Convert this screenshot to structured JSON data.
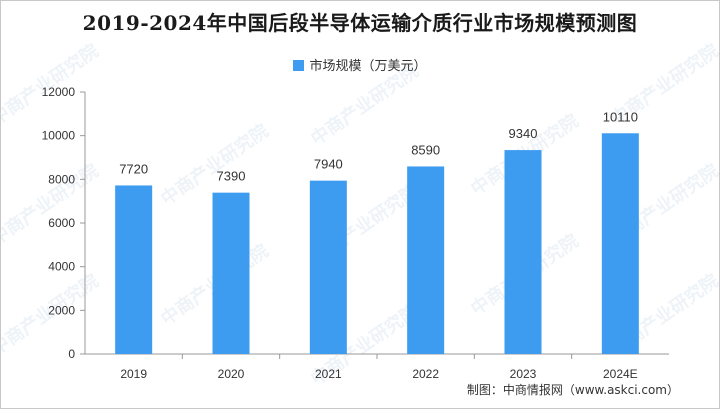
{
  "chart_data": {
    "type": "bar",
    "title": "2019-2024年中国后段半导体运输介质行业市场规模预测图",
    "categories": [
      "2019",
      "2020",
      "2021",
      "2022",
      "2023",
      "2024E"
    ],
    "series": [
      {
        "name": "市场规模（万美元）",
        "values": [
          7720,
          7390,
          7940,
          8590,
          9340,
          10110
        ],
        "color": "#3d9cf0"
      }
    ],
    "data_labels": [
      "7720",
      "7390",
      "7940",
      "8590",
      "9340",
      "10110"
    ],
    "yticks": [
      "0",
      "2000",
      "4000",
      "6000",
      "8000",
      "10000",
      "12000"
    ],
    "ylim": [
      0,
      12000
    ],
    "xlabel": "",
    "ylabel": "",
    "grid": false,
    "legend": "top-center"
  },
  "source": "制图：中商情报网（www.askci.com）",
  "watermark": "中商产业研究院"
}
